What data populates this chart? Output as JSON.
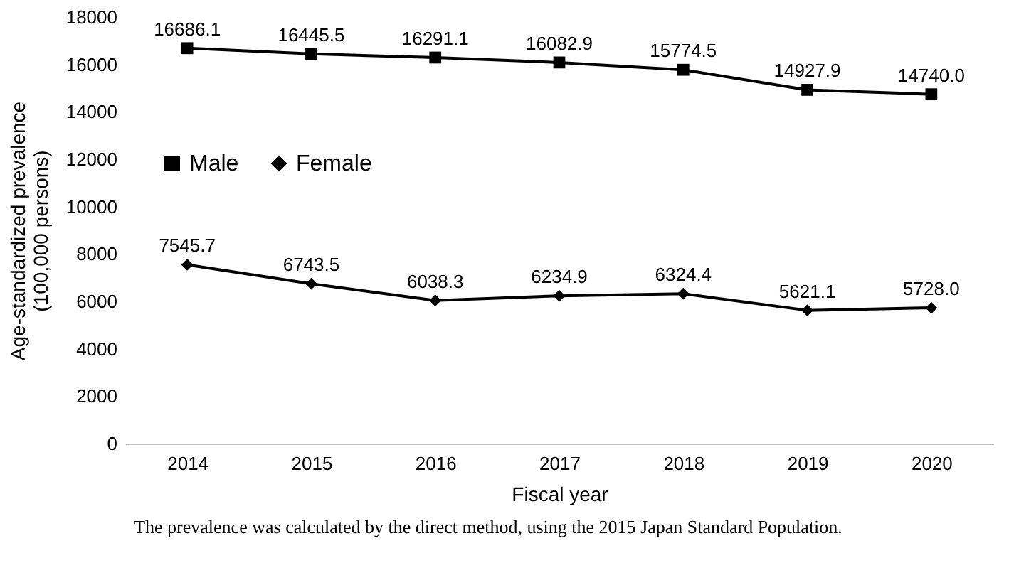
{
  "chart_data": {
    "type": "line",
    "xlabel": "Fiscal year",
    "ylabel": "Age-standardized prevalence\n(100,000 persons)",
    "categories": [
      "2014",
      "2015",
      "2016",
      "2017",
      "2018",
      "2019",
      "2020"
    ],
    "series": [
      {
        "name": "Male",
        "color": "#000000",
        "marker": "square",
        "values": [
          16686.1,
          16445.5,
          16291.1,
          16082.9,
          15774.5,
          14927.9,
          14740.0
        ],
        "value_labels": [
          "16686.1",
          "16445.5",
          "16291.1",
          "16082.9",
          "15774.5",
          "14927.9",
          "14740.0"
        ]
      },
      {
        "name": "Female",
        "color": "#000000",
        "marker": "diamond",
        "values": [
          7545.7,
          6743.5,
          6038.3,
          6234.9,
          6324.4,
          5621.1,
          5728.0
        ],
        "value_labels": [
          "7545.7",
          "6743.5",
          "6038.3",
          "6234.9",
          "6324.4",
          "5621.1",
          "5728.0"
        ]
      }
    ],
    "ylim": [
      0,
      18000
    ],
    "yticks": [
      0,
      2000,
      4000,
      6000,
      8000,
      10000,
      12000,
      14000,
      16000,
      18000
    ],
    "grid": false,
    "legend": "left",
    "annotations": [
      "The prevalence was calculated by the direct method, using the 2015 Japan Standard Population."
    ]
  }
}
